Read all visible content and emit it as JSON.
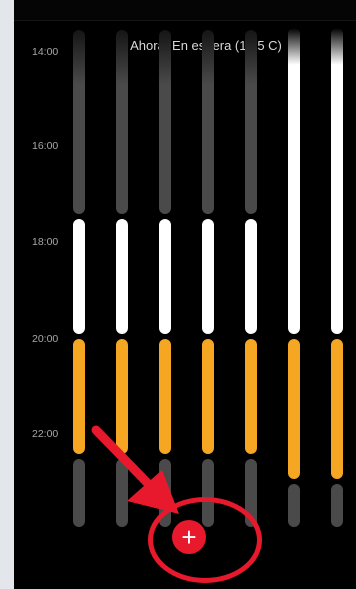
{
  "status": {
    "now_label": "Ahora: En espera (17,5 C)"
  },
  "timeline": {
    "hours": [
      "14:00",
      "16:00",
      "18:00",
      "20:00",
      "22:00"
    ]
  },
  "add_button": {
    "icon": "plus-icon",
    "glyph": "+"
  },
  "colors": {
    "background": "#000000",
    "inactive": "#4a4a4a",
    "comfort": "#ffffff",
    "eco": "#f5a623",
    "accent": "#e8192c"
  }
}
